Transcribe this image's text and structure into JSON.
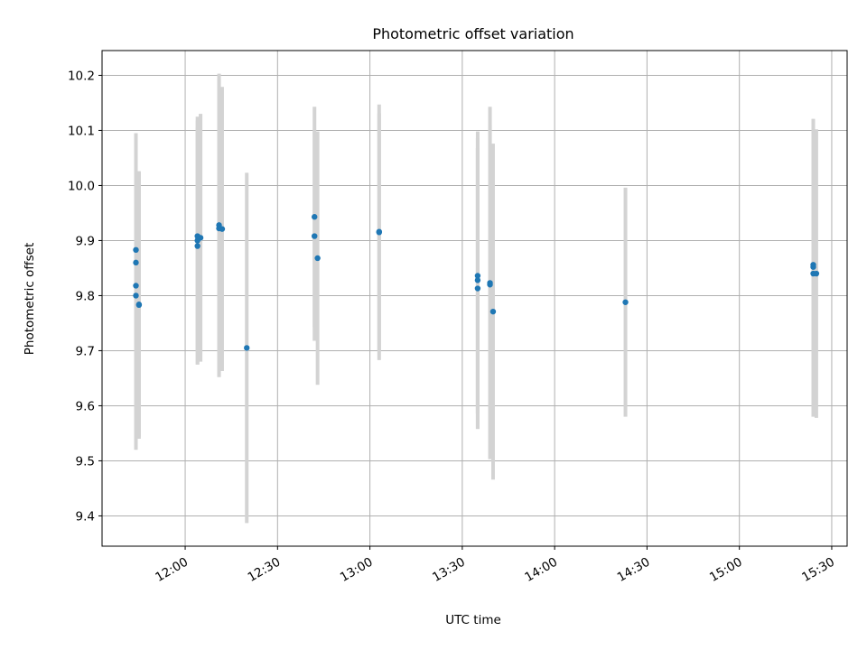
{
  "chart_data": {
    "type": "scatter",
    "title": "Photometric offset variation",
    "xlabel": "UTC time",
    "ylabel": "Photometric offset",
    "x_scale": "time",
    "x_range": [
      "11:33",
      "15:35"
    ],
    "ylim": [
      9.345,
      10.245
    ],
    "x_ticks": [
      "12:00",
      "12:30",
      "13:00",
      "13:30",
      "14:00",
      "14:30",
      "15:00",
      "15:30"
    ],
    "y_ticks": [
      9.4,
      9.5,
      9.6,
      9.7,
      9.8,
      9.9,
      10.0,
      10.1,
      10.2
    ],
    "y_tick_labels": [
      "9.4",
      "9.5",
      "9.6",
      "9.7",
      "9.8",
      "9.9",
      "10.0",
      "10.1",
      "10.2"
    ],
    "grid": true,
    "colors": {
      "point": "#1f77b4",
      "errorbar": "#d3d3d3",
      "grid": "#b0b0b0"
    },
    "points": [
      {
        "x": "11:44",
        "y": 9.883,
        "err": 0.21
      },
      {
        "x": "11:44",
        "y": 9.86,
        "err": 0.235
      },
      {
        "x": "11:44",
        "y": 9.818,
        "err": 0.265
      },
      {
        "x": "11:44",
        "y": 9.8,
        "err": 0.28
      },
      {
        "x": "11:45",
        "y": 9.784,
        "err": 0.24
      },
      {
        "x": "11:45",
        "y": 9.783,
        "err": 0.243
      },
      {
        "x": "12:04",
        "y": 9.89,
        "err": 0.215
      },
      {
        "x": "12:04",
        "y": 9.9,
        "err": 0.225
      },
      {
        "x": "12:04",
        "y": 9.908,
        "err": 0.21
      },
      {
        "x": "12:05",
        "y": 9.905,
        "err": 0.225
      },
      {
        "x": "12:11",
        "y": 9.922,
        "err": 0.27
      },
      {
        "x": "12:11",
        "y": 9.928,
        "err": 0.275
      },
      {
        "x": "12:12",
        "y": 9.921,
        "err": 0.258
      },
      {
        "x": "12:20",
        "y": 9.705,
        "err": 0.318
      },
      {
        "x": "12:42",
        "y": 9.943,
        "err": 0.2
      },
      {
        "x": "12:42",
        "y": 9.908,
        "err": 0.19
      },
      {
        "x": "12:43",
        "y": 9.868,
        "err": 0.23
      },
      {
        "x": "13:03",
        "y": 9.915,
        "err": 0.232
      },
      {
        "x": "13:03",
        "y": 9.916,
        "err": 0.215
      },
      {
        "x": "13:35",
        "y": 9.813,
        "err": 0.255
      },
      {
        "x": "13:35",
        "y": 9.836,
        "err": 0.25
      },
      {
        "x": "13:35",
        "y": 9.828,
        "err": 0.27
      },
      {
        "x": "13:39",
        "y": 9.823,
        "err": 0.32
      },
      {
        "x": "13:39",
        "y": 9.82,
        "err": 0.29
      },
      {
        "x": "13:40",
        "y": 9.771,
        "err": 0.305
      },
      {
        "x": "14:23",
        "y": 9.788,
        "err": 0.208
      },
      {
        "x": "15:24",
        "y": 9.856,
        "err": 0.265
      },
      {
        "x": "15:24",
        "y": 9.852,
        "err": 0.25
      },
      {
        "x": "15:24",
        "y": 9.84,
        "err": 0.26
      },
      {
        "x": "15:25",
        "y": 9.84,
        "err": 0.262
      }
    ]
  }
}
